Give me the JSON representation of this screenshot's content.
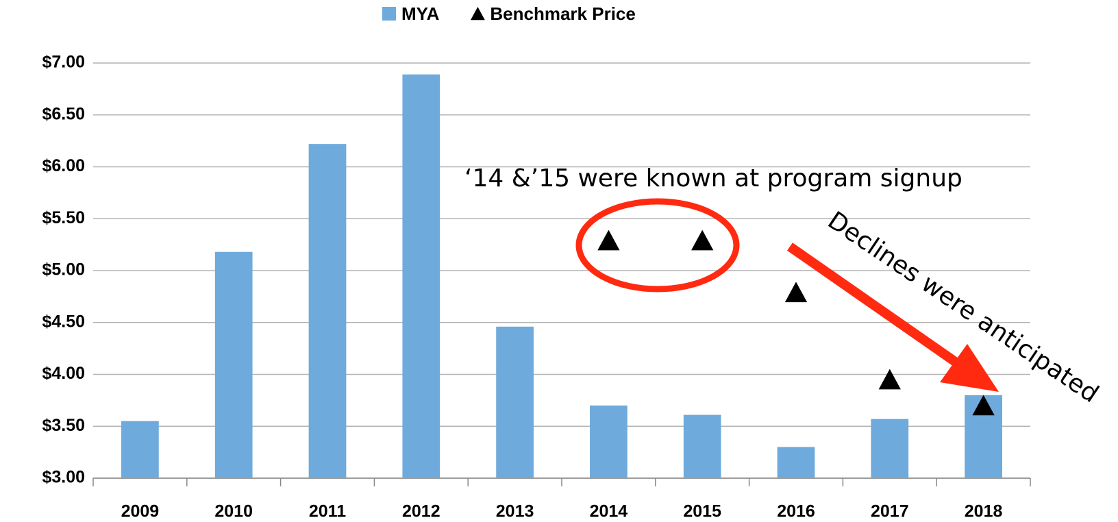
{
  "chart_data": {
    "type": "bar",
    "categories": [
      "2009",
      "2010",
      "2011",
      "2012",
      "2013",
      "2014",
      "2015",
      "2016",
      "2017",
      "2018"
    ],
    "series": [
      {
        "name": "MYA",
        "type": "bar",
        "color": "#6eaadc",
        "values": [
          3.55,
          5.18,
          6.22,
          6.89,
          4.46,
          3.7,
          3.61,
          3.3,
          3.57,
          3.8
        ]
      },
      {
        "name": "Benchmark Price",
        "type": "scatter",
        "marker": "triangle",
        "color": "#000000",
        "values": [
          null,
          null,
          null,
          null,
          null,
          5.28,
          5.28,
          4.78,
          3.94,
          3.69
        ]
      }
    ],
    "ylim": [
      3,
      7
    ],
    "yticks": [
      {
        "value": 3,
        "label": "$3.00"
      },
      {
        "value": 3.5,
        "label": "$3.50"
      },
      {
        "value": 4,
        "label": "$4.00"
      },
      {
        "value": 4.5,
        "label": "$4.50"
      },
      {
        "value": 5,
        "label": "$5.00"
      },
      {
        "value": 5.5,
        "label": "$5.50"
      },
      {
        "value": 6,
        "label": "$6.00"
      },
      {
        "value": 6.5,
        "label": "$6.50"
      },
      {
        "value": 7,
        "label": "$7.00"
      }
    ],
    "grid": true,
    "legend": "top",
    "annotations": [
      "‘14 &’15 were known at program signup",
      "Declines were anticipated"
    ]
  }
}
